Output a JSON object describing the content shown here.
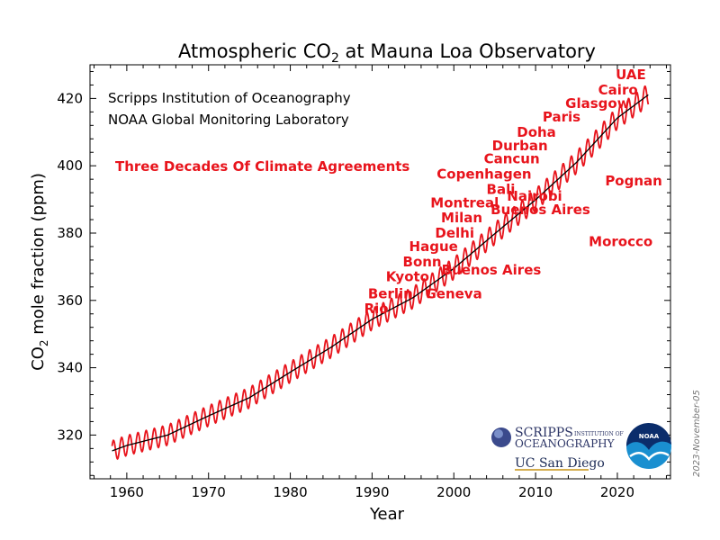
{
  "chart_data": {
    "type": "line",
    "title_main": "Atmospheric CO",
    "title_sub": "2",
    "title_rest": " at Mauna Loa Observatory",
    "xlabel": "Year",
    "ylabel_a": "CO",
    "ylabel_sub": "2",
    "ylabel_b": " mole fraction (ppm)",
    "xlim": [
      1955.5,
      2026.5
    ],
    "ylim": [
      307,
      430
    ],
    "x_ticks": [
      1960,
      1970,
      1980,
      1990,
      2000,
      2010,
      2020
    ],
    "y_ticks": [
      320,
      340,
      360,
      380,
      400,
      420
    ],
    "grid": false,
    "series": [
      {
        "name": "",
        "color": "#e8141c",
        "kind": "monthly-seasonal",
        "trend_x": [
          1958.2,
          1960,
          1965,
          1970,
          1975,
          1980,
          1985,
          1990,
          1995,
          2000,
          2005,
          2010,
          2015,
          2020,
          2023.8
        ],
        "trend_y": [
          315.3,
          316.9,
          320.0,
          325.7,
          331.1,
          338.7,
          346.1,
          354.4,
          360.8,
          369.5,
          379.8,
          389.9,
          401.0,
          414.2,
          421.1
        ],
        "seasonal_amplitude": 3.3
      },
      {
        "name": "",
        "color": "#000000",
        "kind": "deseasonalized-trend"
      }
    ],
    "credits": [
      "Scripps Institution of Oceanography",
      "NOAA Global Monitoring Laboratory"
    ],
    "annotations_title": "Three Decades Of Climate Agreements",
    "annotations": [
      {
        "text": "Rio",
        "x": 1992.0,
        "y": 357.5
      },
      {
        "text": "Berlin",
        "x": 1995.0,
        "y": 362.0
      },
      {
        "text": "Kyoto",
        "x": 1997.0,
        "y": 367.0
      },
      {
        "text": "Bonn",
        "x": 1998.5,
        "y": 371.5
      },
      {
        "text": "Hague",
        "x": 2000.5,
        "y": 376.0
      },
      {
        "text": "Delhi",
        "x": 2002.5,
        "y": 380.0
      },
      {
        "text": "Milan",
        "x": 2003.5,
        "y": 384.5
      },
      {
        "text": "Montreal",
        "x": 2005.5,
        "y": 389.0
      },
      {
        "text": "Bali",
        "x": 2007.5,
        "y": 393.0
      },
      {
        "text": "Copenhagen",
        "x": 2009.5,
        "y": 397.5
      },
      {
        "text": "Cancun",
        "x": 2010.5,
        "y": 402.0
      },
      {
        "text": "Durban",
        "x": 2011.5,
        "y": 406.0
      },
      {
        "text": "Doha",
        "x": 2012.5,
        "y": 410.0
      },
      {
        "text": "Paris",
        "x": 2015.5,
        "y": 414.5
      },
      {
        "text": "Glasgow",
        "x": 2021.5,
        "y": 418.5
      },
      {
        "text": "Cairo",
        "x": 2022.5,
        "y": 422.5
      },
      {
        "text": "UAE",
        "x": 2023.5,
        "y": 427.0
      },
      {
        "text": "Geneva",
        "x": 1996.5,
        "y": 362.0
      },
      {
        "text": "Buenos Aires",
        "x": 1998.5,
        "y": 369.0
      },
      {
        "text": "Morocco",
        "x": 2016.5,
        "y": 377.5
      },
      {
        "text": "Buenos Aires",
        "x": 2004.5,
        "y": 387.0
      },
      {
        "text": "Nairobi",
        "x": 2006.5,
        "y": 391.0
      },
      {
        "text": "Pognan",
        "x": 2018.5,
        "y": 395.5
      }
    ]
  },
  "logos": {
    "scripps_line1": "SCRIPPS",
    "scripps_line1b": "INSTITUTION OF",
    "scripps_line2": "OCEANOGRAPHY",
    "ucsd": "UC San Diego",
    "noaa": "NOAA"
  },
  "date_stamp": "2023-November-05",
  "colors": {
    "monthly": "#e8141c",
    "trend": "#000000",
    "annotation": "#e8141c",
    "noaa_blue": "#1a8fd0",
    "noaa_navy": "#0b2d6b"
  }
}
